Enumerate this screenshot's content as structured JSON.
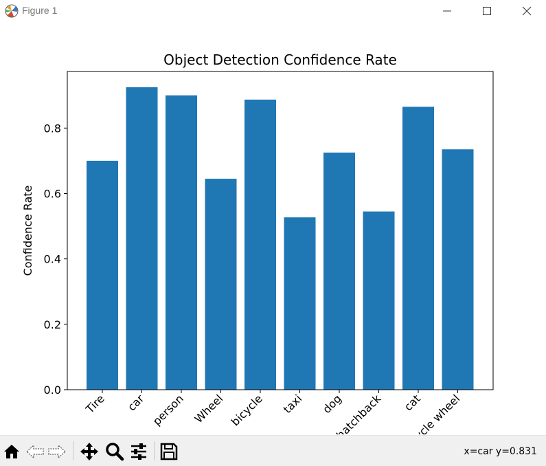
{
  "window": {
    "title": "Figure 1"
  },
  "status": {
    "coordinates": "x=car y=0.831"
  },
  "toolbar": {
    "buttons": [
      "home-icon",
      "back-icon",
      "forward-icon",
      "pan-icon",
      "zoom-icon",
      "configure-subplots-icon",
      "save-icon"
    ]
  },
  "colors": {
    "bar": "#1f77b4"
  },
  "chart_data": {
    "type": "bar",
    "title": "Object Detection Confidence Rate",
    "xlabel": "",
    "ylabel": "Confidence Rate",
    "categories": [
      "Tire",
      "car",
      "person",
      "Wheel",
      "bicycle",
      "taxi",
      "dog",
      "hatchback",
      "cat",
      "bicycle wheel"
    ],
    "values": [
      0.7,
      0.925,
      0.9,
      0.645,
      0.887,
      0.527,
      0.725,
      0.545,
      0.865,
      0.735
    ],
    "ylim": [
      0,
      0.973
    ],
    "yticks": [
      0.0,
      0.2,
      0.4,
      0.6,
      0.8
    ],
    "ytick_labels": [
      "0.0",
      "0.2",
      "0.4",
      "0.6",
      "0.8"
    ],
    "grid": false,
    "legend": "none"
  }
}
